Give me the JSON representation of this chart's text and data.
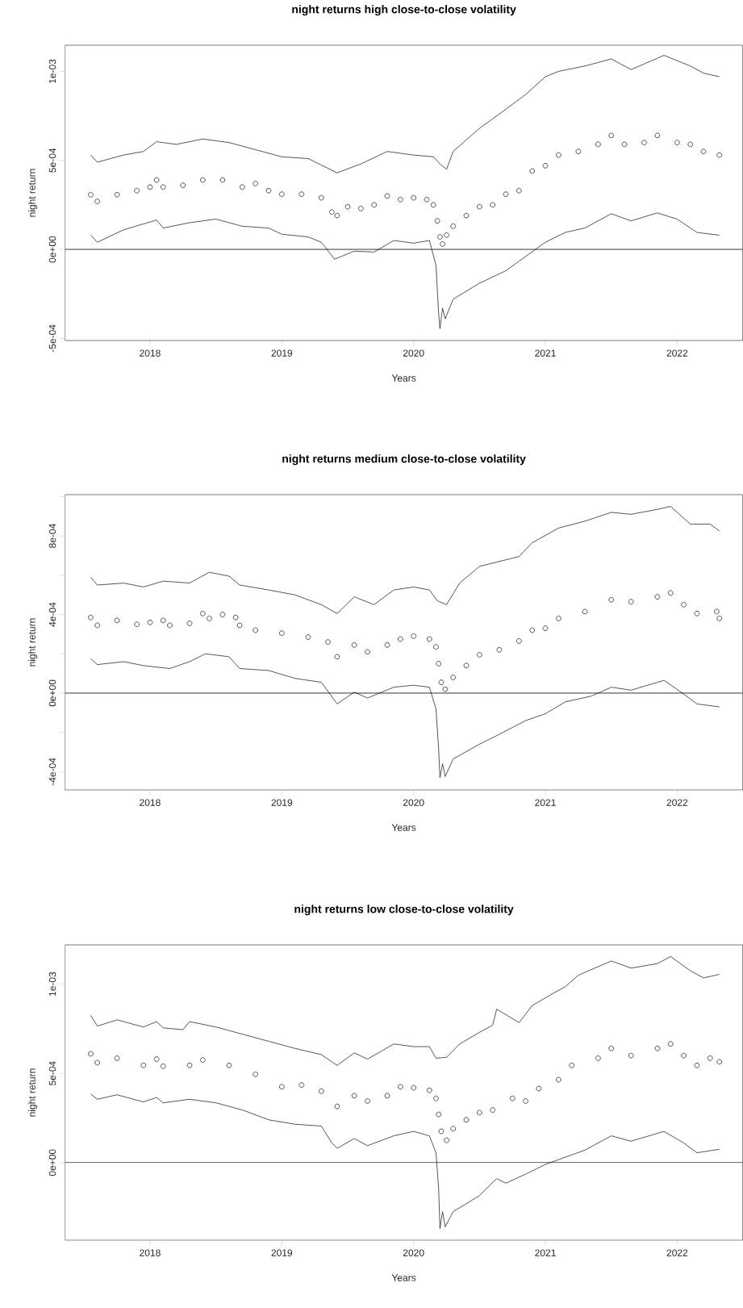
{
  "chart_data": [
    {
      "type": "line",
      "title": "night returns high close-to-close volatility",
      "xlabel": "Years",
      "ylabel": "night return",
      "xlim": [
        2017.355,
        2022.497
      ],
      "xticks": [
        2018,
        2019,
        2020,
        2021,
        2022
      ],
      "ylim": [
        -0.000512,
        0.001147
      ],
      "yticks": [
        {
          "value": -0.0005,
          "label": "-5e-04"
        },
        {
          "value": 0,
          "label": "0e+00"
        },
        {
          "value": 0.0005,
          "label": "5e-04"
        },
        {
          "value": 0.001,
          "label": "1e-03"
        }
      ],
      "ref_lines": [
        {
          "axis": "y",
          "value": 0,
          "color": "#000000"
        }
      ],
      "series": [
        {
          "type": "scatter",
          "marker": "circle",
          "color": "#000000",
          "x": [
            2017.55,
            2017.6,
            2017.75,
            2017.9,
            2018.0,
            2018.05,
            2018.1,
            2018.25,
            2018.4,
            2018.55,
            2018.7,
            2018.8,
            2018.9,
            2019.0,
            2019.15,
            2019.3,
            2019.38,
            2019.42,
            2019.5,
            2019.6,
            2019.7,
            2019.8,
            2019.9,
            2020.0,
            2020.1,
            2020.15,
            2020.18,
            2020.2,
            2020.22,
            2020.25,
            2020.3,
            2020.4,
            2020.5,
            2020.6,
            2020.7,
            2020.8,
            2020.9,
            2021.0,
            2021.1,
            2021.25,
            2021.4,
            2021.5,
            2021.6,
            2021.75,
            2021.85,
            2022.0,
            2022.1,
            2022.2,
            2022.32
          ],
          "values": [
            0.000307,
            0.00027,
            0.000307,
            0.00033,
            0.00035,
            0.00039,
            0.00035,
            0.00036,
            0.00039,
            0.00039,
            0.00035,
            0.00037,
            0.00033,
            0.00031,
            0.00031,
            0.00029,
            0.00021,
            0.00019,
            0.00024,
            0.00023,
            0.00025,
            0.0003,
            0.00028,
            0.00029,
            0.00028,
            0.00025,
            0.00016,
            7e-05,
            3e-05,
            8e-05,
            0.00013,
            0.00019,
            0.00024,
            0.00025,
            0.00031,
            0.00033,
            0.00044,
            0.00047,
            0.00053,
            0.00055,
            0.00059,
            0.00064,
            0.00059,
            0.0006,
            0.00064,
            0.0006,
            0.00059,
            0.00055,
            0.00053
          ]
        },
        {
          "type": "line",
          "color": "#000000",
          "x": [
            2017.55,
            2017.6,
            2017.8,
            2017.95,
            2018.05,
            2018.2,
            2018.4,
            2018.6,
            2018.8,
            2019.0,
            2019.2,
            2019.42,
            2019.6,
            2019.8,
            2020.0,
            2020.15,
            2020.2,
            2020.25,
            2020.3,
            2020.5,
            2020.65,
            2020.85,
            2021.0,
            2021.1,
            2021.3,
            2021.5,
            2021.65,
            2021.9,
            2022.1,
            2022.2,
            2022.32
          ],
          "values": [
            0.00053,
            0.00049,
            0.00053,
            0.00055,
            0.000605,
            0.00059,
            0.00062,
            0.0006,
            0.00056,
            0.00052,
            0.00051,
            0.00043,
            0.00048,
            0.00055,
            0.00053,
            0.00052,
            0.00048,
            0.00045,
            0.00055,
            0.00068,
            0.00076,
            0.00087,
            0.00097,
            0.001,
            0.00103,
            0.00107,
            0.00101,
            0.00109,
            0.00103,
            0.00099,
            0.00097
          ]
        },
        {
          "type": "line",
          "color": "#000000",
          "x": [
            2017.55,
            2017.6,
            2017.8,
            2018.05,
            2018.1,
            2018.3,
            2018.5,
            2018.7,
            2018.9,
            2019.0,
            2019.2,
            2019.3,
            2019.4,
            2019.55,
            2019.7,
            2019.85,
            2020.0,
            2020.12,
            2020.17,
            2020.19,
            2020.2,
            2020.22,
            2020.24,
            2020.3,
            2020.5,
            2020.7,
            2020.85,
            2021.0,
            2021.15,
            2021.3,
            2021.5,
            2021.65,
            2021.85,
            2022.0,
            2022.15,
            2022.32
          ],
          "values": [
            8e-05,
            4e-05,
            0.00011,
            0.000165,
            0.00012,
            0.00015,
            0.00017,
            0.00013,
            0.00012,
            8.5e-05,
            7e-05,
            4e-05,
            -5.5e-05,
            -1e-05,
            -1.5e-05,
            5e-05,
            3.5e-05,
            5e-05,
            -9e-05,
            -0.00036,
            -0.000445,
            -0.00033,
            -0.00039,
            -0.00028,
            -0.00019,
            -0.00012,
            -4e-05,
            4e-05,
            9.5e-05,
            0.00012,
            0.0002,
            0.00016,
            0.000205,
            0.00017,
            9.5e-05,
            8e-05
          ]
        }
      ]
    },
    {
      "type": "line",
      "title": "night returns medium close-to-close volatility",
      "xlabel": "Years",
      "ylabel": "night return",
      "xlim": [
        2017.355,
        2022.497
      ],
      "xticks": [
        2018,
        2019,
        2020,
        2021,
        2022
      ],
      "ylim": [
        -0.000493,
        0.00101
      ],
      "yticks": [
        {
          "value": -0.0004,
          "label": "-4e-04"
        },
        {
          "value": -0.0002,
          "label": null
        },
        {
          "value": 0,
          "label": "0e+00"
        },
        {
          "value": 0.0002,
          "label": null
        },
        {
          "value": 0.0004,
          "label": "4e-04"
        },
        {
          "value": 0.0006,
          "label": null
        },
        {
          "value": 0.0008,
          "label": "8e-04"
        },
        {
          "value": 0.001,
          "label": null
        }
      ],
      "ref_lines": [
        {
          "axis": "y",
          "value": 0,
          "color": "#000000"
        }
      ],
      "series": [
        {
          "type": "scatter",
          "marker": "circle",
          "color": "#000000",
          "x": [
            2017.55,
            2017.6,
            2017.75,
            2017.9,
            2018.0,
            2018.1,
            2018.15,
            2018.3,
            2018.4,
            2018.45,
            2018.55,
            2018.65,
            2018.68,
            2018.8,
            2019.0,
            2019.2,
            2019.35,
            2019.42,
            2019.55,
            2019.65,
            2019.8,
            2019.9,
            2020.0,
            2020.12,
            2020.17,
            2020.19,
            2020.21,
            2020.24,
            2020.3,
            2020.4,
            2020.5,
            2020.65,
            2020.8,
            2020.9,
            2021.0,
            2021.1,
            2021.3,
            2021.5,
            2021.65,
            2021.85,
            2021.95,
            2022.05,
            2022.15,
            2022.3,
            2022.32
          ],
          "values": [
            0.000385,
            0.000345,
            0.00037,
            0.00035,
            0.00036,
            0.00037,
            0.000345,
            0.000355,
            0.000405,
            0.00038,
            0.0004,
            0.000385,
            0.000345,
            0.00032,
            0.000305,
            0.000285,
            0.00026,
            0.000185,
            0.000245,
            0.00021,
            0.000245,
            0.000275,
            0.00029,
            0.000275,
            0.000235,
            0.00015,
            5.5e-05,
            2e-05,
            8e-05,
            0.00014,
            0.000195,
            0.00022,
            0.000265,
            0.00032,
            0.00033,
            0.00038,
            0.000415,
            0.000475,
            0.000465,
            0.00049,
            0.00051,
            0.00045,
            0.000405,
            0.000415,
            0.00038
          ]
        },
        {
          "type": "line",
          "color": "#000000",
          "x": [
            2017.55,
            2017.6,
            2017.8,
            2017.95,
            2018.1,
            2018.3,
            2018.45,
            2018.6,
            2018.68,
            2018.9,
            2019.1,
            2019.3,
            2019.42,
            2019.55,
            2019.7,
            2019.85,
            2020.0,
            2020.12,
            2020.18,
            2020.25,
            2020.35,
            2020.5,
            2020.65,
            2020.8,
            2020.9,
            2021.1,
            2021.3,
            2021.5,
            2021.65,
            2021.85,
            2021.95,
            2022.1,
            2022.25,
            2022.32
          ],
          "values": [
            0.00059,
            0.00055,
            0.00056,
            0.00054,
            0.00057,
            0.00056,
            0.000615,
            0.000595,
            0.00055,
            0.000525,
            0.0005,
            0.00045,
            0.000405,
            0.00049,
            0.00045,
            0.000525,
            0.00054,
            0.000525,
            0.00047,
            0.00045,
            0.00056,
            0.000645,
            0.00067,
            0.000695,
            0.000765,
            0.00084,
            0.000875,
            0.00092,
            0.00091,
            0.000935,
            0.00095,
            0.00086,
            0.00086,
            0.000825
          ]
        },
        {
          "type": "line",
          "color": "#000000",
          "x": [
            2017.55,
            2017.6,
            2017.8,
            2017.95,
            2018.15,
            2018.3,
            2018.42,
            2018.6,
            2018.68,
            2018.9,
            2019.1,
            2019.3,
            2019.42,
            2019.55,
            2019.65,
            2019.85,
            2020.0,
            2020.12,
            2020.17,
            2020.19,
            2020.2,
            2020.22,
            2020.24,
            2020.3,
            2020.5,
            2020.65,
            2020.85,
            2021.0,
            2021.15,
            2021.35,
            2021.5,
            2021.65,
            2021.9,
            2022.05,
            2022.15,
            2022.32
          ],
          "values": [
            0.000175,
            0.000145,
            0.00016,
            0.00014,
            0.000125,
            0.00016,
            0.0002,
            0.000185,
            0.000125,
            0.000115,
            7.5e-05,
            5.5e-05,
            -5.5e-05,
            5e-06,
            -2.5e-05,
            3e-05,
            4e-05,
            3e-05,
            -8e-05,
            -0.000285,
            -0.00043,
            -0.00036,
            -0.000425,
            -0.000335,
            -0.00026,
            -0.00021,
            -0.00014,
            -0.000105,
            -4.5e-05,
            -1.5e-05,
            3e-05,
            1.5e-05,
            6.5e-05,
            -5e-06,
            -5.5e-05,
            -7e-05
          ]
        }
      ]
    },
    {
      "type": "line",
      "title": "night returns low close-to-close volatility",
      "xlabel": "Years",
      "ylabel": "night return",
      "xlim": [
        2017.355,
        2022.497
      ],
      "xticks": [
        2018,
        2019,
        2020,
        2021,
        2022
      ],
      "ylim": [
        -0.000435,
        0.00122
      ],
      "yticks": [
        {
          "value": 0,
          "label": "0e+00"
        },
        {
          "value": 0.0005,
          "label": "5e-04"
        },
        {
          "value": 0.001,
          "label": "1e-03"
        }
      ],
      "ref_lines": [
        {
          "axis": "y",
          "value": 0,
          "color": "#000000"
        }
      ],
      "series": [
        {
          "type": "scatter",
          "marker": "circle",
          "color": "#000000",
          "x": [
            2017.55,
            2017.6,
            2017.75,
            2017.95,
            2018.05,
            2018.1,
            2018.3,
            2018.4,
            2018.6,
            2018.8,
            2019.0,
            2019.15,
            2019.3,
            2019.42,
            2019.55,
            2019.65,
            2019.8,
            2019.9,
            2020.0,
            2020.12,
            2020.17,
            2020.19,
            2020.21,
            2020.25,
            2020.3,
            2020.4,
            2020.5,
            2020.6,
            2020.75,
            2020.85,
            2020.95,
            2021.1,
            2021.2,
            2021.4,
            2021.5,
            2021.65,
            2021.85,
            2021.95,
            2022.05,
            2022.15,
            2022.25,
            2022.32
          ],
          "values": [
            0.00061,
            0.00056,
            0.000585,
            0.000545,
            0.00058,
            0.00054,
            0.000545,
            0.000575,
            0.000545,
            0.000495,
            0.000425,
            0.000435,
            0.0004,
            0.000315,
            0.000375,
            0.000345,
            0.000375,
            0.000425,
            0.00042,
            0.000405,
            0.00036,
            0.00027,
            0.000175,
            0.000125,
            0.00019,
            0.00024,
            0.00028,
            0.000295,
            0.00036,
            0.000345,
            0.000415,
            0.000465,
            0.000545,
            0.000585,
            0.00064,
            0.0006,
            0.00064,
            0.000665,
            0.0006,
            0.000545,
            0.000585,
            0.000565
          ]
        },
        {
          "type": "line",
          "color": "#000000",
          "x": [
            2017.55,
            2017.6,
            2017.75,
            2017.95,
            2018.05,
            2018.1,
            2018.25,
            2018.3,
            2018.5,
            2018.7,
            2018.9,
            2019.1,
            2019.3,
            2019.42,
            2019.55,
            2019.65,
            2019.85,
            2020.0,
            2020.12,
            2020.17,
            2020.25,
            2020.35,
            2020.5,
            2020.6,
            2020.63,
            2020.8,
            2020.9,
            2021.05,
            2021.15,
            2021.25,
            2021.5,
            2021.65,
            2021.85,
            2021.95,
            2022.1,
            2022.2,
            2022.32
          ],
          "values": [
            0.000825,
            0.000765,
            0.0008,
            0.00076,
            0.00079,
            0.000755,
            0.000745,
            0.00079,
            0.00076,
            0.00072,
            0.00068,
            0.00064,
            0.000605,
            0.000545,
            0.000615,
            0.00058,
            0.000665,
            0.00065,
            0.00065,
            0.000585,
            0.00059,
            0.000665,
            0.00073,
            0.00077,
            0.00086,
            0.000785,
            0.00088,
            0.000945,
            0.000985,
            0.00105,
            0.00113,
            0.00109,
            0.001115,
            0.001155,
            0.001075,
            0.001035,
            0.001055
          ]
        },
        {
          "type": "line",
          "color": "#000000",
          "x": [
            2017.55,
            2017.6,
            2017.75,
            2017.95,
            2018.05,
            2018.1,
            2018.3,
            2018.5,
            2018.7,
            2018.9,
            2019.1,
            2019.3,
            2019.38,
            2019.42,
            2019.55,
            2019.65,
            2019.85,
            2020.0,
            2020.12,
            2020.17,
            2020.19,
            2020.2,
            2020.22,
            2020.24,
            2020.3,
            2020.5,
            2020.63,
            2020.7,
            2020.85,
            2021.0,
            2021.15,
            2021.3,
            2021.5,
            2021.65,
            2021.9,
            2022.05,
            2022.15,
            2022.32
          ],
          "values": [
            0.000385,
            0.000355,
            0.00038,
            0.00034,
            0.000365,
            0.000335,
            0.000355,
            0.000335,
            0.000295,
            0.00024,
            0.000215,
            0.000205,
            0.00011,
            8e-05,
            0.000135,
            9.5e-05,
            0.00015,
            0.000175,
            0.00015,
            5.5e-05,
            -0.000145,
            -0.00037,
            -0.000275,
            -0.00036,
            -0.000275,
            -0.000185,
            -9e-05,
            -0.000115,
            -6.5e-05,
            -1e-05,
            3e-05,
            7e-05,
            0.00015,
            0.00012,
            0.000175,
            0.00011,
            5.5e-05,
            7.5e-05
          ]
        }
      ]
    }
  ]
}
